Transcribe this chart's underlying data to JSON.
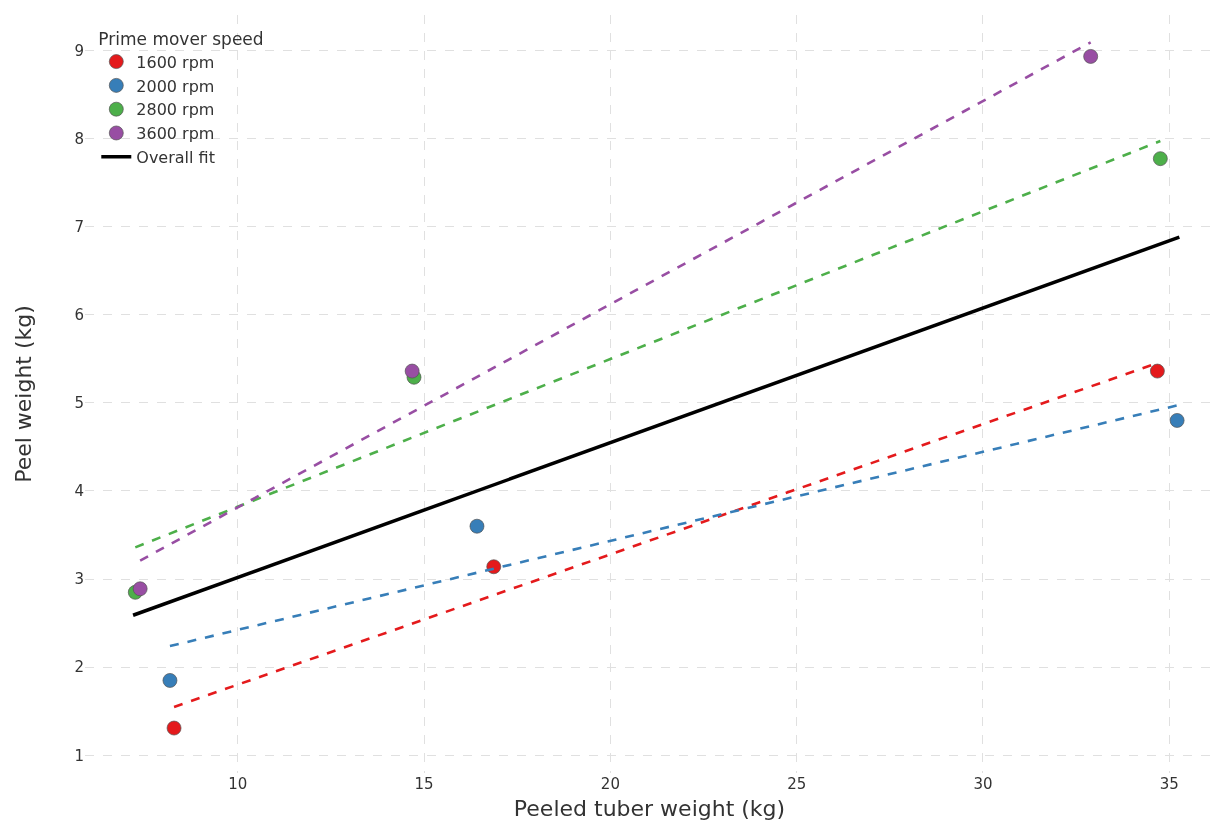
{
  "chart_data": {
    "type": "scatter",
    "xlabel": "Peeled tuber weight (kg)",
    "ylabel": "Peel weight (kg)",
    "legend_title": "Prime mover speed",
    "xlim": [
      5.9,
      36.2
    ],
    "xticks": [
      10,
      15,
      20,
      25,
      30,
      35
    ],
    "ylim": [
      0.8,
      9.4
    ],
    "yticks": [
      1,
      2,
      3,
      4,
      5,
      6,
      7,
      8,
      9
    ],
    "grid": true,
    "legend": "top left",
    "series": [
      {
        "name": "1600 rpm",
        "color": "#e41a1c",
        "marker": "circle",
        "x": [
          8.29,
          16.87,
          34.68
        ],
        "values": [
          1.31,
          3.14,
          5.36
        ]
      },
      {
        "name": "2000 rpm",
        "color": "#377eb8",
        "marker": "circle",
        "x": [
          8.18,
          16.42,
          35.21
        ],
        "values": [
          1.85,
          3.6,
          4.8
        ]
      },
      {
        "name": "2800 rpm",
        "color": "#4daf4a",
        "marker": "circle",
        "x": [
          7.25,
          14.73,
          34.76
        ],
        "values": [
          2.85,
          5.29,
          7.77
        ]
      },
      {
        "name": "3600 rpm",
        "color": "#984ea3",
        "marker": "circle",
        "x": [
          7.38,
          14.68,
          32.89
        ],
        "values": [
          2.89,
          5.36,
          8.93
        ]
      },
      {
        "type": "line",
        "line_style": "dashed",
        "color": "#e41a1c",
        "x": [
          8.29,
          34.68
        ],
        "values": [
          1.55,
          5.45
        ]
      },
      {
        "type": "line",
        "line_style": "dashed",
        "color": "#377eb8",
        "x": [
          8.18,
          35.21
        ],
        "values": [
          2.24,
          4.97
        ]
      },
      {
        "type": "line",
        "line_style": "dashed",
        "color": "#4daf4a",
        "x": [
          7.25,
          34.76
        ],
        "values": [
          3.36,
          7.97
        ]
      },
      {
        "type": "line",
        "line_style": "dashed",
        "color": "#984ea3",
        "x": [
          7.38,
          32.89
        ],
        "values": [
          3.21,
          9.09
        ]
      },
      {
        "type": "line",
        "name": "Overall fit",
        "line_style": "solid",
        "color": "#000000",
        "x": [
          7.19,
          35.27
        ],
        "values": [
          2.59,
          6.88
        ]
      }
    ]
  }
}
